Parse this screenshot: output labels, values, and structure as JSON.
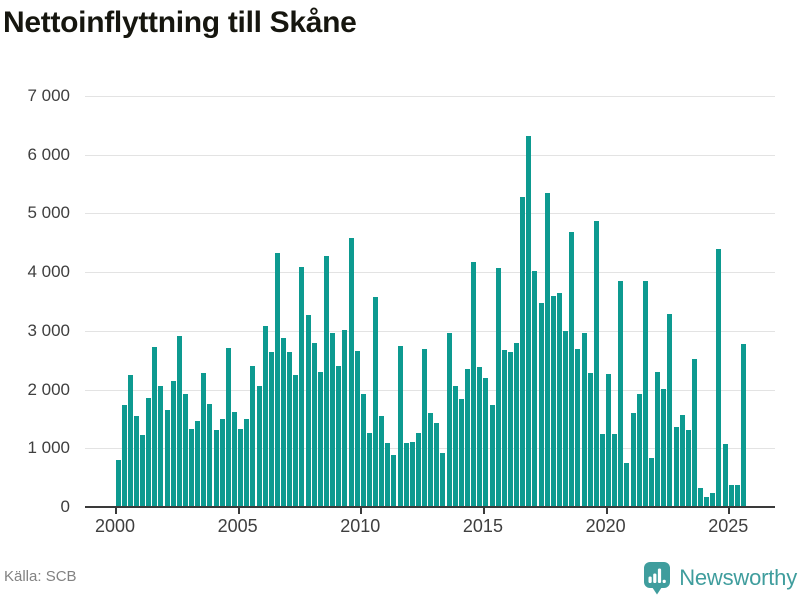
{
  "header": {
    "title": "Nettoinflyttning till Skåne"
  },
  "chart_data": {
    "type": "bar",
    "title": "Nettoinflyttning till Skåne",
    "xlabel": "",
    "ylabel": "",
    "ylim": [
      0,
      7000
    ],
    "grid": true,
    "legend": false,
    "bar_color": "#0d9a90",
    "xticks": [
      "2000",
      "2005",
      "2010",
      "2015",
      "2020",
      "2025"
    ],
    "yticks": [
      {
        "value": 0,
        "label": "0"
      },
      {
        "value": 1000,
        "label": "1 000"
      },
      {
        "value": 2000,
        "label": "2 000"
      },
      {
        "value": 3000,
        "label": "3 000"
      },
      {
        "value": 4000,
        "label": "4 000"
      },
      {
        "value": 5000,
        "label": "5 000"
      },
      {
        "value": 6000,
        "label": "6 000"
      },
      {
        "value": 7000,
        "label": "7 000"
      }
    ],
    "x": [
      "2000Q1",
      "2000Q2",
      "2000Q3",
      "2000Q4",
      "2001Q1",
      "2001Q2",
      "2001Q3",
      "2001Q4",
      "2002Q1",
      "2002Q2",
      "2002Q3",
      "2002Q4",
      "2003Q1",
      "2003Q2",
      "2003Q3",
      "2003Q4",
      "2004Q1",
      "2004Q2",
      "2004Q3",
      "2004Q4",
      "2005Q1",
      "2005Q2",
      "2005Q3",
      "2005Q4",
      "2006Q1",
      "2006Q2",
      "2006Q3",
      "2006Q4",
      "2007Q1",
      "2007Q2",
      "2007Q3",
      "2007Q4",
      "2008Q1",
      "2008Q2",
      "2008Q3",
      "2008Q4",
      "2009Q1",
      "2009Q2",
      "2009Q3",
      "2009Q4",
      "2010Q1",
      "2010Q2",
      "2010Q3",
      "2010Q4",
      "2011Q1",
      "2011Q2",
      "2011Q3",
      "2011Q4",
      "2012Q1",
      "2012Q2",
      "2012Q3",
      "2012Q4",
      "2013Q1",
      "2013Q2",
      "2013Q3",
      "2013Q4",
      "2014Q1",
      "2014Q2",
      "2014Q3",
      "2014Q4",
      "2015Q1",
      "2015Q2",
      "2015Q3",
      "2015Q4",
      "2016Q1",
      "2016Q2",
      "2016Q3",
      "2016Q4",
      "2017Q1",
      "2017Q2",
      "2017Q3",
      "2017Q4",
      "2018Q1",
      "2018Q2",
      "2018Q3",
      "2018Q4",
      "2019Q1",
      "2019Q2",
      "2019Q3",
      "2019Q4",
      "2020Q1",
      "2020Q2",
      "2020Q3",
      "2020Q4",
      "2021Q1",
      "2021Q2",
      "2021Q3",
      "2021Q4",
      "2022Q1",
      "2022Q2",
      "2022Q3",
      "2022Q4",
      "2023Q1",
      "2023Q2",
      "2023Q3",
      "2023Q4",
      "2024Q1",
      "2024Q2",
      "2024Q3",
      "2024Q4",
      "2025Q1",
      "2025Q2",
      "2025Q3"
    ],
    "values": [
      780,
      1720,
      2230,
      1540,
      1210,
      1840,
      2700,
      2050,
      1640,
      2130,
      2900,
      1900,
      1310,
      1440,
      2270,
      1730,
      1300,
      1490,
      2690,
      1600,
      1320,
      1480,
      2390,
      2050,
      3060,
      2620,
      4310,
      2870,
      2620,
      2230,
      4070,
      3250,
      2770,
      2290,
      4260,
      2940,
      2390,
      2990,
      4560,
      2640,
      1900,
      1240,
      3560,
      1530,
      1070,
      870,
      2730,
      1070,
      1090,
      1240,
      2680,
      1590,
      1410,
      900,
      2950,
      2050,
      1830,
      2340,
      4160,
      2360,
      2180,
      1720,
      4060,
      2660,
      2620,
      2780,
      5260,
      6300,
      4010,
      3450,
      5330,
      3580,
      3620,
      2980,
      4670,
      2670,
      2950,
      2270,
      4850,
      1220,
      2250,
      1220,
      3840,
      740,
      1580,
      1900,
      3840,
      810,
      2290,
      1990,
      3270,
      1340,
      1550,
      1300,
      2510,
      300,
      150,
      230,
      4370,
      1050,
      350,
      350,
      2760
    ]
  },
  "footer": {
    "source": "Källa: SCB",
    "brand": "Newsworthy"
  }
}
